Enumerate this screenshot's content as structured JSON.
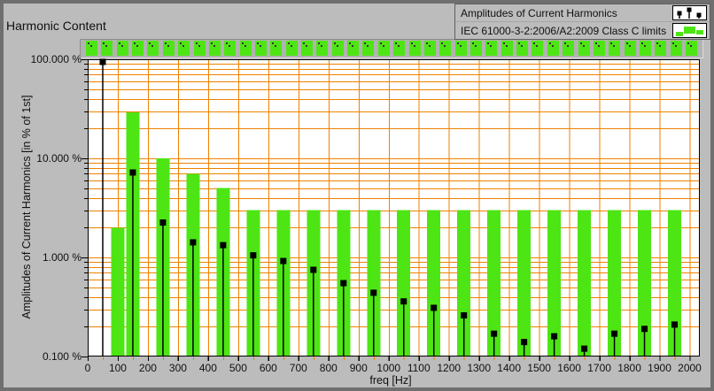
{
  "panel": {
    "title": "Harmonic Content"
  },
  "legend": {
    "items": [
      {
        "label": "Amplitudes of Current Harmonics",
        "icon": "stem-plot-icon"
      },
      {
        "label": "IEC 61000-3-2:2006/A2:2009 Class C limits",
        "icon": "bar-plot-icon"
      }
    ]
  },
  "indicator_strip": {
    "count": 40,
    "color": "#4ee514"
  },
  "chart_data": {
    "type": "bar",
    "title": "Harmonic Content",
    "xlabel": "freq [Hz]",
    "ylabel": "Amplitudes of Current Harmonics [in % of 1st]",
    "x_axis": {
      "min": 0,
      "max": 2000,
      "tick_step": 100,
      "minor_tick_step": 50,
      "tick_labels": [
        "0",
        "100",
        "200",
        "300",
        "400",
        "500",
        "600",
        "700",
        "800",
        "900",
        "1000",
        "1100",
        "1200",
        "1300",
        "1400",
        "1500",
        "1600",
        "1700",
        "1800",
        "1900",
        "2000"
      ]
    },
    "y_axis": {
      "scale": "log",
      "min": 0.1,
      "max": 100,
      "ticks": [
        {
          "value": 100,
          "label": "100.000 %"
        },
        {
          "value": 10,
          "label": "10.000 %"
        },
        {
          "value": 1,
          "label": "1.000 %"
        },
        {
          "value": 0.1,
          "label": "0.100 %"
        }
      ]
    },
    "grid": {
      "color": "#ee8200",
      "vertical_every_hz": 100,
      "horizontal": "log decades with minors 2-9"
    },
    "plot_bg": "#ffffff",
    "series": [
      {
        "name": "Amplitudes of Current Harmonics",
        "type": "stem",
        "color": "#000000",
        "points": [
          [
            50,
            100
          ],
          [
            150,
            7.2
          ],
          [
            250,
            2.25
          ],
          [
            350,
            1.42
          ],
          [
            450,
            1.33
          ],
          [
            550,
            1.05
          ],
          [
            650,
            0.92
          ],
          [
            750,
            0.75
          ],
          [
            850,
            0.55
          ],
          [
            950,
            0.44
          ],
          [
            1050,
            0.36
          ],
          [
            1150,
            0.31
          ],
          [
            1250,
            0.26
          ],
          [
            1350,
            0.17
          ],
          [
            1450,
            0.14
          ],
          [
            1550,
            0.16
          ],
          [
            1650,
            0.12
          ],
          [
            1750,
            0.17
          ],
          [
            1850,
            0.19
          ],
          [
            1950,
            0.21
          ]
        ]
      },
      {
        "name": "IEC 61000-3-2:2006/A2:2009 Class C limits",
        "type": "bar",
        "color": "#4ee514",
        "points": [
          [
            100,
            2
          ],
          [
            150,
            29
          ],
          [
            250,
            10
          ],
          [
            350,
            7
          ],
          [
            450,
            5
          ],
          [
            550,
            3
          ],
          [
            650,
            3
          ],
          [
            750,
            3
          ],
          [
            850,
            3
          ],
          [
            950,
            3
          ],
          [
            1050,
            3
          ],
          [
            1150,
            3
          ],
          [
            1250,
            3
          ],
          [
            1350,
            3
          ],
          [
            1450,
            3
          ],
          [
            1550,
            3
          ],
          [
            1650,
            3
          ],
          [
            1750,
            3
          ],
          [
            1850,
            3
          ],
          [
            1950,
            3
          ]
        ]
      }
    ]
  }
}
